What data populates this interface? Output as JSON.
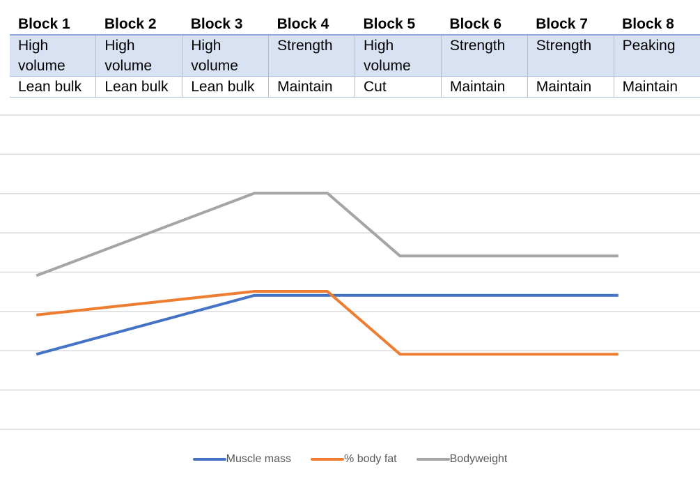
{
  "table": {
    "blocks": [
      "Block 1",
      "Block 2",
      "Block 3",
      "Block 4",
      "Block 5",
      "Block 6",
      "Block 7",
      "Block 8"
    ],
    "training_focus": [
      "High volume",
      "High volume",
      "High volume",
      "Strength",
      "High volume",
      "Strength",
      "Strength",
      "Peaking"
    ],
    "diet_phase": [
      "Lean bulk",
      "Lean bulk",
      "Lean bulk",
      "Maintain",
      "Cut",
      "Maintain",
      "Maintain",
      "Maintain"
    ]
  },
  "chart_data": {
    "type": "line",
    "x": [
      1,
      4,
      5,
      6,
      9
    ],
    "ylim": [
      0,
      8
    ],
    "grid": true,
    "legend_position": "bottom",
    "series": [
      {
        "name": "Muscle mass",
        "color": "#4472c4",
        "values": [
          2,
          3.5,
          3.5,
          3.5,
          3.5
        ]
      },
      {
        "name": "% body fat",
        "color": "#ed7d31",
        "values": [
          3,
          3.6,
          3.6,
          2,
          2
        ]
      },
      {
        "name": "Bodyweight",
        "color": "#a5a5a5",
        "values": [
          4,
          6.1,
          6.1,
          4.5,
          4.5
        ]
      }
    ]
  }
}
